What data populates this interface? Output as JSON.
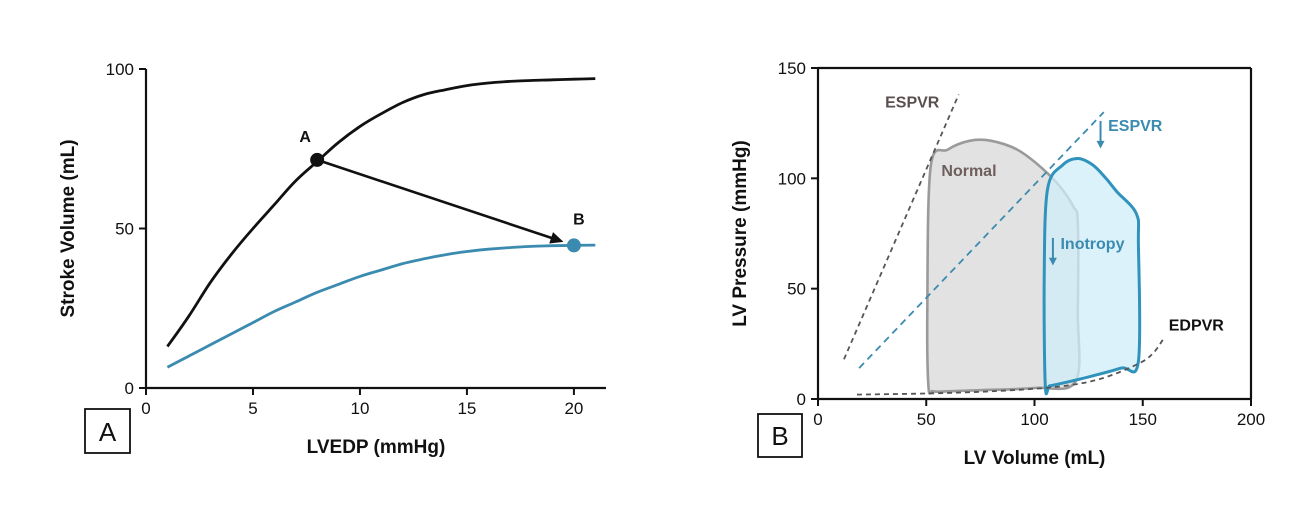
{
  "colors": {
    "black": "#111111",
    "teal": "#3b8bb0",
    "teal_fill": "#cfeefa",
    "teal_line": "#2f93bb",
    "gray_fill": "#e2e2e2",
    "gray_line": "#9a9a9a",
    "dashed_gray": "#555555",
    "normal_text": "#6e5e5e"
  },
  "chart_data": [
    {
      "panel": "A",
      "type": "line",
      "xlabel": "LVEDP (mmHg)",
      "ylabel": "Stroke Volume (mL)",
      "xlim": [
        0,
        21.5
      ],
      "ylim": [
        0,
        100
      ],
      "xticks": [
        "0",
        "5",
        "10",
        "15",
        "20"
      ],
      "yticks": [
        "0",
        "50",
        "100"
      ],
      "series": [
        {
          "color": "black",
          "x": [
            1,
            2,
            3,
            4,
            5,
            6,
            7,
            8,
            9,
            10,
            11,
            12,
            13,
            14,
            15,
            16,
            17,
            18,
            19,
            20,
            21
          ],
          "values": [
            13,
            22.5,
            33,
            42,
            50,
            57.5,
            65,
            71,
            77,
            82,
            86,
            89.5,
            92,
            93.5,
            94.8,
            95.6,
            96.1,
            96.4,
            96.6,
            96.8,
            97
          ]
        },
        {
          "color": "teal",
          "x": [
            1,
            2,
            3,
            4,
            5,
            6,
            7,
            8,
            9,
            10,
            11,
            12,
            13,
            14,
            15,
            16,
            17,
            18,
            19,
            20,
            21
          ],
          "values": [
            6.5,
            10,
            13.5,
            17,
            20.5,
            24,
            27,
            30,
            32.5,
            35,
            37,
            39,
            40.5,
            41.8,
            42.8,
            43.5,
            44,
            44.4,
            44.6,
            44.7,
            44.8
          ]
        }
      ],
      "points": [
        {
          "label": "A",
          "x": 8,
          "y": 71.5,
          "color": "black"
        },
        {
          "label": "B",
          "x": 20,
          "y": 44.7,
          "color": "teal"
        }
      ],
      "panel_label": "A"
    },
    {
      "panel": "B",
      "type": "line",
      "xlabel": "LV Volume (mL)",
      "ylabel": "LV Pressure (mmHg)",
      "xlim": [
        0,
        200
      ],
      "ylim": [
        0,
        150
      ],
      "xticks": [
        "0",
        "50",
        "100",
        "150",
        "200"
      ],
      "yticks": [
        "0",
        "50",
        "100",
        "150"
      ],
      "loops": [
        {
          "name": "Normal",
          "color": "gray",
          "x": [
            51,
            50.5,
            52,
            60,
            70,
            80,
            92,
            103,
            112,
            118,
            120,
            120,
            119,
            100,
            75,
            60,
            53
          ],
          "y": [
            6,
            40,
            105,
            113,
            117,
            117,
            113,
            105,
            96,
            87,
            80,
            40,
            8,
            5,
            4,
            3.5,
            3.5
          ]
        },
        {
          "name": "↓ Inotropy",
          "color": "teal",
          "x": [
            105,
            104.5,
            106,
            113,
            120,
            127,
            133,
            138,
            147,
            148,
            148,
            140,
            125,
            112,
            107
          ],
          "y": [
            6,
            55,
            95,
            106,
            109,
            106,
            100,
            94,
            84,
            70,
            17,
            14,
            10,
            7,
            6
          ]
        }
      ],
      "lines": [
        {
          "name": "ESPVR",
          "color": "dashed_gray",
          "x": [
            12,
            65
          ],
          "y": [
            18,
            138
          ]
        },
        {
          "name": "↓ ESPVR",
          "color": "teal",
          "x": [
            19,
            132
          ],
          "y": [
            14,
            130
          ]
        },
        {
          "name": "EDPVR",
          "color": "dashed_gray",
          "x": [
            18,
            50,
            80,
            110,
            130,
            148,
            155,
            160
          ],
          "y": [
            2,
            2.5,
            3.5,
            5.5,
            9,
            16,
            21,
            28
          ]
        }
      ],
      "annotations": [
        "ESPVR",
        "↓ ESPVR",
        "Normal",
        "↓ Inotropy",
        "EDPVR"
      ],
      "panel_label": "B"
    }
  ]
}
